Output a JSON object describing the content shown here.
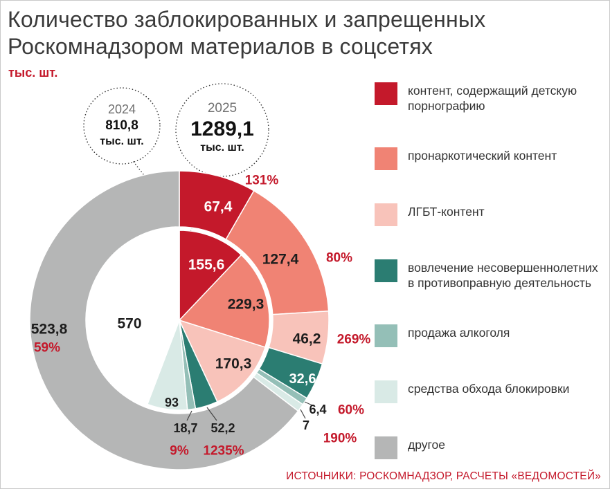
{
  "header": {
    "title_line1": "Количество заблокированных и запрещенных",
    "title_line2": "Роскомнадзором материалов в соцсетях",
    "unit": "тыс. шт."
  },
  "chart_data": {
    "type": "pie",
    "description": "Two concentric pies, clockwise from 12 o'clock: outer ring = 2024 values, inner pie = 2025 values; red percentages = growth 2025 vs 2024",
    "unit": "тыс. шт.",
    "totals": [
      {
        "year": "2024",
        "value": 810.8,
        "unit": "тыс. шт."
      },
      {
        "year": "2025",
        "value": 1289.1,
        "unit": "тыс. шт."
      }
    ],
    "total_growth": "59%",
    "inner_other_fill": "#ffffff",
    "categories": [
      {
        "key": "porn",
        "label": "контент, содержащий детскую порнографию",
        "color": "#c4192b",
        "v2024": 67.4,
        "v2025": 155.6,
        "growth": "131%"
      },
      {
        "key": "drug",
        "label": "пронаркотический контент",
        "color": "#f08374",
        "v2024": 127.4,
        "v2025": 229.3,
        "growth": "80%"
      },
      {
        "key": "lgbt",
        "label": "ЛГБТ-контент",
        "color": "#f8c3ba",
        "v2024": 46.2,
        "v2025": 170.3,
        "growth": "269%"
      },
      {
        "key": "minors",
        "label": "вовлечение несовершеннолетних в противоправную деятельность",
        "color": "#2b7d72",
        "v2024": 32.6,
        "v2025": 52.2,
        "growth": "60%"
      },
      {
        "key": "alcohol",
        "label": "продажа алкоголя",
        "color": "#94bfb7",
        "v2024": 6.4,
        "v2025": 18.7,
        "growth": "190%"
      },
      {
        "key": "circumvention",
        "label": "средства обхода блокировки",
        "color": "#d9eae6",
        "v2024": 7,
        "v2025": 93,
        "growth": "1235%"
      },
      {
        "key": "other",
        "label": "другое",
        "color": "#b5b6b6",
        "v2024": 523.8,
        "v2025": 570,
        "growth": "9%"
      }
    ]
  },
  "footer": {
    "source": "ИСТОЧНИКИ: РОСКОМНАДЗОР, РАСЧЕТЫ «ВЕДОМОСТЕЙ»"
  },
  "colors": {
    "accent_red": "#c4192b",
    "title_text": "#3a3a3a"
  }
}
